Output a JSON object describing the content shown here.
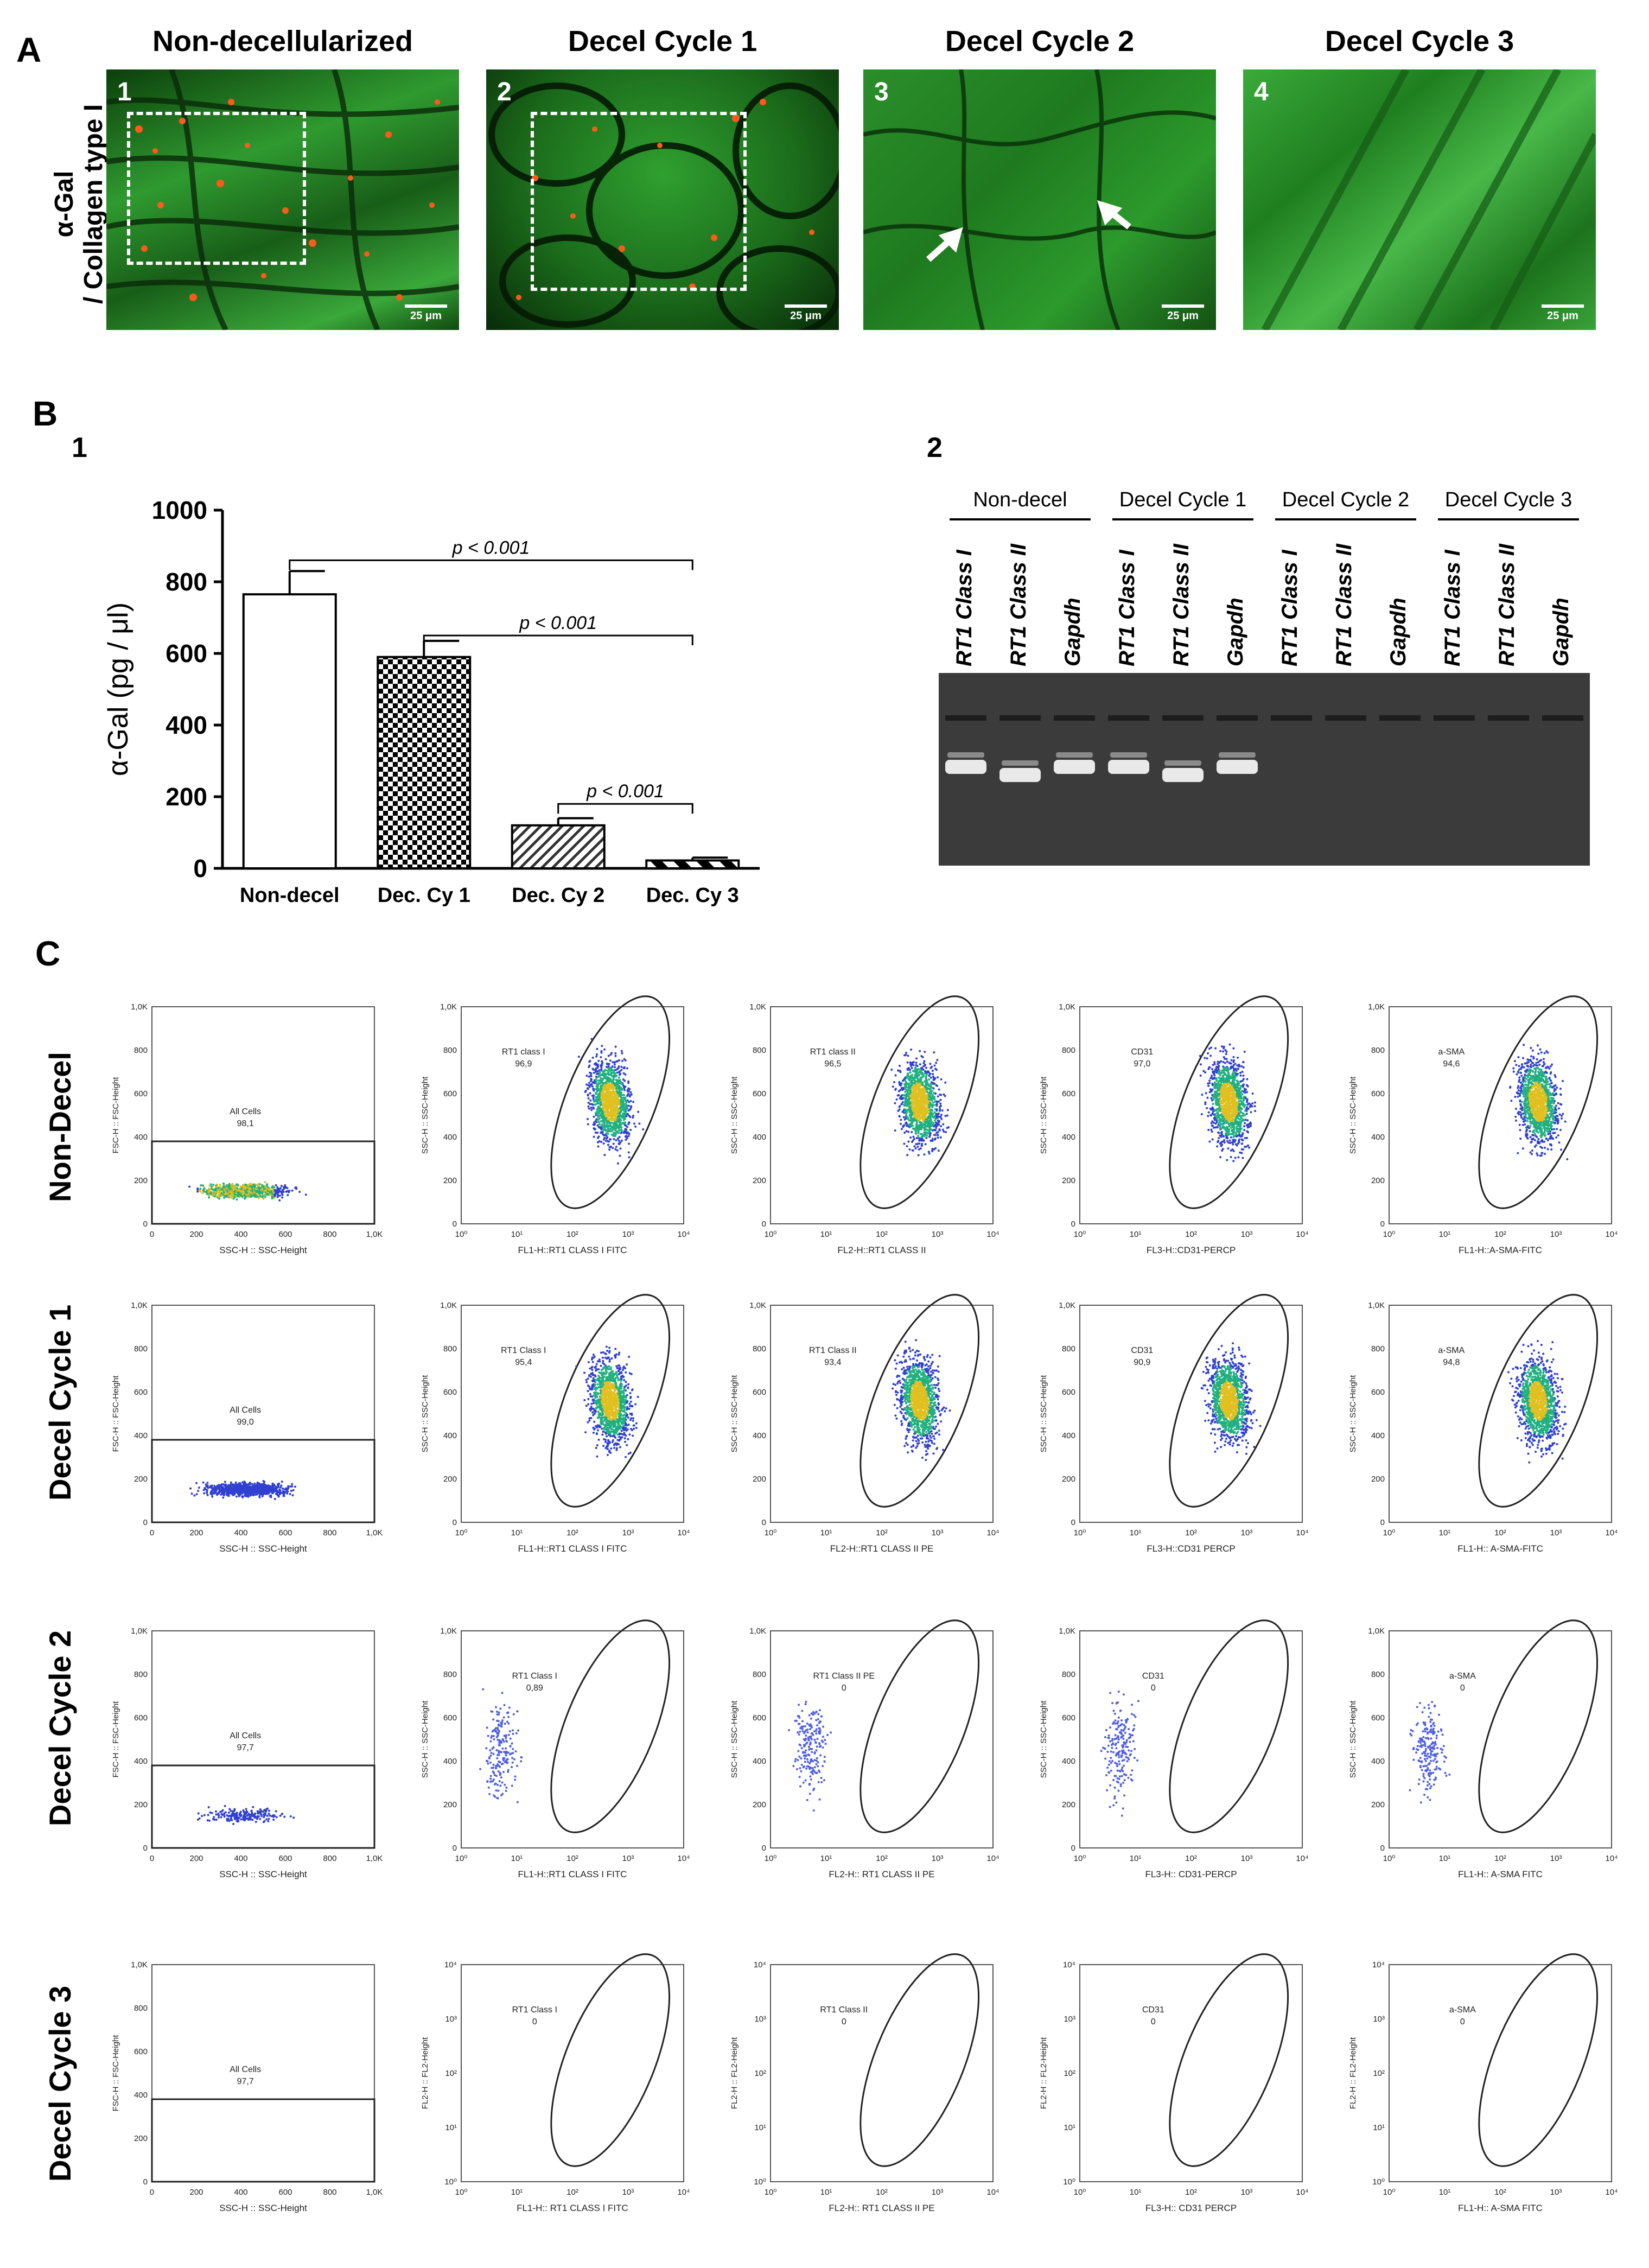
{
  "panelA": {
    "letter": "A",
    "row_label": [
      "α-Gal",
      "/ Collagen type I"
    ],
    "columns": [
      "Non-decellularized",
      "Decel Cycle 1",
      "Decel Cycle 2",
      "Decel Cycle 3"
    ],
    "image_numbers": [
      "1",
      "2",
      "3",
      "4"
    ],
    "scale_bar": "25 μm"
  },
  "panelB": {
    "letter": "B",
    "sub1": "1",
    "sub2": "2",
    "gel": {
      "groups": [
        "Non-decel",
        "Decel Cycle 1",
        "Decel Cycle 2",
        "Decel Cycle 3"
      ],
      "lanes": [
        "RT1 Class I",
        "RT1 Class II",
        "Gapdh",
        "RT1 Class I",
        "RT1 Class II",
        "Gapdh",
        "RT1 Class I",
        "RT1 Class II",
        "Gapdh",
        "RT1 Class I",
        "RT1 Class II",
        "Gapdh"
      ]
    }
  },
  "chart_data": {
    "type": "bar",
    "categories": [
      "Non-decel",
      "Dec. Cy 1",
      "Dec. Cy 2",
      "Dec. Cy 3"
    ],
    "values": [
      765,
      590,
      120,
      22
    ],
    "errors": [
      65,
      45,
      20,
      8
    ],
    "ylabel": "α-Gal (pg / μl)",
    "ylim": [
      0,
      1000
    ],
    "yticks": [
      "0",
      "200",
      "400",
      "600",
      "800",
      "1000"
    ],
    "significance": [
      "p < 0.001",
      "p < 0.001",
      "p < 0.001"
    ],
    "bar_patterns": [
      "white",
      "checkered",
      "hatched",
      "striped"
    ]
  },
  "panelC": {
    "letter": "C",
    "rows": [
      "Non-Decel",
      "Decel Cycle 1",
      "Decel Cycle 2",
      "Decel Cycle 3"
    ],
    "all_cells_label": "All Cells",
    "all_cells_values": [
      "98,1",
      "99,0",
      "97,7",
      "97,7"
    ],
    "y_ticks_linear": [
      "0",
      "200",
      "400",
      "600",
      "800",
      "1,0K"
    ],
    "x_ticks_linear": [
      "0",
      "200",
      "400",
      "600",
      "800",
      "1,0K"
    ],
    "log_ticks": [
      "10⁰",
      "10¹",
      "10²",
      "10³",
      "10⁴"
    ],
    "fsc_ylabel": "FSC-H :: FSC-Height",
    "ssc_ylabel": "SSC-H :: SSC-Height",
    "fl2_ylabel": "FL2-H :: FL2-Height",
    "ssc_xlabel": "SSC-H :: SSC-Height",
    "gates": [
      [
        {
          "name": "RT1 class I",
          "value": "96,9",
          "x": "FL1-H::RT1 CLASS I FITC"
        },
        {
          "name": "RT1 class II",
          "value": "96,5",
          "x": "FL2-H::RT1 CLASS II"
        },
        {
          "name": "CD31",
          "value": "97,0",
          "x": "FL3-H::CD31-PERCP"
        },
        {
          "name": "a-SMA",
          "value": "94,6",
          "x": "FL1-H::A-SMA-FITC"
        }
      ],
      [
        {
          "name": "RT1 Class I",
          "value": "95,4",
          "x": "FL1-H::RT1 CLASS I FITC"
        },
        {
          "name": "RT1 Class II",
          "value": "93,4",
          "x": "FL2-H::RT1 CLASS II PE"
        },
        {
          "name": "CD31",
          "value": "90,9",
          "x": "FL3-H::CD31 PERCP"
        },
        {
          "name": "a-SMA",
          "value": "94,8",
          "x": "FL1-H:: A-SMA-FITC"
        }
      ],
      [
        {
          "name": "RT1 Class I",
          "value": "0,89",
          "x": "FL1-H::RT1 CLASS I FITC"
        },
        {
          "name": "RT1 Class II PE",
          "value": "0",
          "x": "FL2-H:: RT1 CLASS II PE"
        },
        {
          "name": "CD31",
          "value": "0",
          "x": "FL3-H:: CD31-PERCP"
        },
        {
          "name": "a-SMA",
          "value": "0",
          "x": "FL1-H:: A-SMA FITC"
        }
      ],
      [
        {
          "name": "RT1 Class I",
          "value": "0",
          "x": "FL1-H:: RT1 CLASS I FITC"
        },
        {
          "name": "RT1 Class II",
          "value": "0",
          "x": "FL2-H:: RT1 CLASS II PE"
        },
        {
          "name": "CD31",
          "value": "0",
          "x": "FL3-H:: CD31 PERCP"
        },
        {
          "name": "a-SMA",
          "value": "0",
          "x": "FL1-H:: A-SMA FITC"
        }
      ]
    ]
  }
}
